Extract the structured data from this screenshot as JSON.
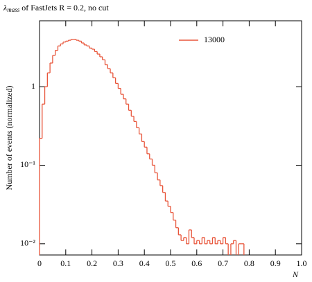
{
  "chart_data": {
    "type": "histogram",
    "title_symbol": "λ",
    "title_subscript": "mass",
    "title": " of FastJets R = 0.2, no cut",
    "xlabel": "N",
    "ylabel": "Number of events (normalized)",
    "log_y": true,
    "xlim": [
      0,
      1
    ],
    "ylim": [
      0.0072,
      6.9
    ],
    "xticks": [
      0,
      0.1,
      0.2,
      0.3,
      0.4,
      0.5,
      0.6,
      0.7,
      0.8,
      0.9,
      {
        "value": 1,
        "label": "1.0"
      }
    ],
    "yticks": [
      {
        "value": 0.01,
        "label": "10⁻²"
      },
      {
        "value": 0.1,
        "label": "10⁻¹"
      },
      1
    ],
    "legend": "upper right",
    "series": [
      {
        "name": "13000",
        "color": "#e8553a",
        "bins": [
          0,
          0.01,
          0.02,
          0.03,
          0.04,
          0.05,
          0.06,
          0.07,
          0.08,
          0.09,
          0.1,
          0.11,
          0.12,
          0.13,
          0.14,
          0.15,
          0.16,
          0.17,
          0.18,
          0.19,
          0.2,
          0.21,
          0.22,
          0.23,
          0.24,
          0.25,
          0.26,
          0.27,
          0.28,
          0.29,
          0.3,
          0.31,
          0.32,
          0.33,
          0.34,
          0.35,
          0.36,
          0.37,
          0.38,
          0.39,
          0.4,
          0.41,
          0.42,
          0.43,
          0.44,
          0.45,
          0.46,
          0.47,
          0.48,
          0.49,
          0.5,
          0.51,
          0.52,
          0.53,
          0.54,
          0.55,
          0.56,
          0.57,
          0.58,
          0.59,
          0.6,
          0.61,
          0.62,
          0.63,
          0.64,
          0.65,
          0.66,
          0.67,
          0.68,
          0.69,
          0.7,
          0.71,
          0.72,
          0.73,
          0.74,
          0.75,
          0.76,
          0.77,
          0.78,
          0.79,
          0.8,
          0.81,
          0.82,
          0.83,
          0.84,
          0.85,
          0.86,
          0.87,
          0.88,
          0.89,
          0.9,
          0.91,
          0.92,
          0.93,
          0.94,
          0.95,
          0.96,
          0.97,
          0.98,
          0.99,
          1
        ],
        "values": [
          0.22,
          0.6,
          1.0,
          1.5,
          2.0,
          2.5,
          2.9,
          3.3,
          3.5,
          3.7,
          3.8,
          3.9,
          4.0,
          4.0,
          3.9,
          3.8,
          3.6,
          3.4,
          3.3,
          3.1,
          3.0,
          2.8,
          2.6,
          2.4,
          2.2,
          1.9,
          1.7,
          1.5,
          1.3,
          1.1,
          0.95,
          0.8,
          0.7,
          0.6,
          0.5,
          0.42,
          0.36,
          0.3,
          0.25,
          0.2,
          0.17,
          0.14,
          0.12,
          0.1,
          0.08,
          0.065,
          0.055,
          0.045,
          0.035,
          0.03,
          0.025,
          0.02,
          0.016,
          0.013,
          0.011,
          0.012,
          0.01,
          0.015,
          0.012,
          0.01,
          0.011,
          0.01,
          0.012,
          0.01,
          0.011,
          0.01,
          0.012,
          0.01,
          0.011,
          0.01,
          0.012,
          0.01,
          null,
          0.01,
          0.011,
          null,
          0.01,
          0.01,
          null,
          null,
          null,
          null,
          null,
          null,
          null,
          null,
          null,
          null,
          null,
          null,
          null,
          null,
          null,
          null,
          null,
          null,
          null,
          null,
          null,
          null
        ]
      }
    ]
  }
}
